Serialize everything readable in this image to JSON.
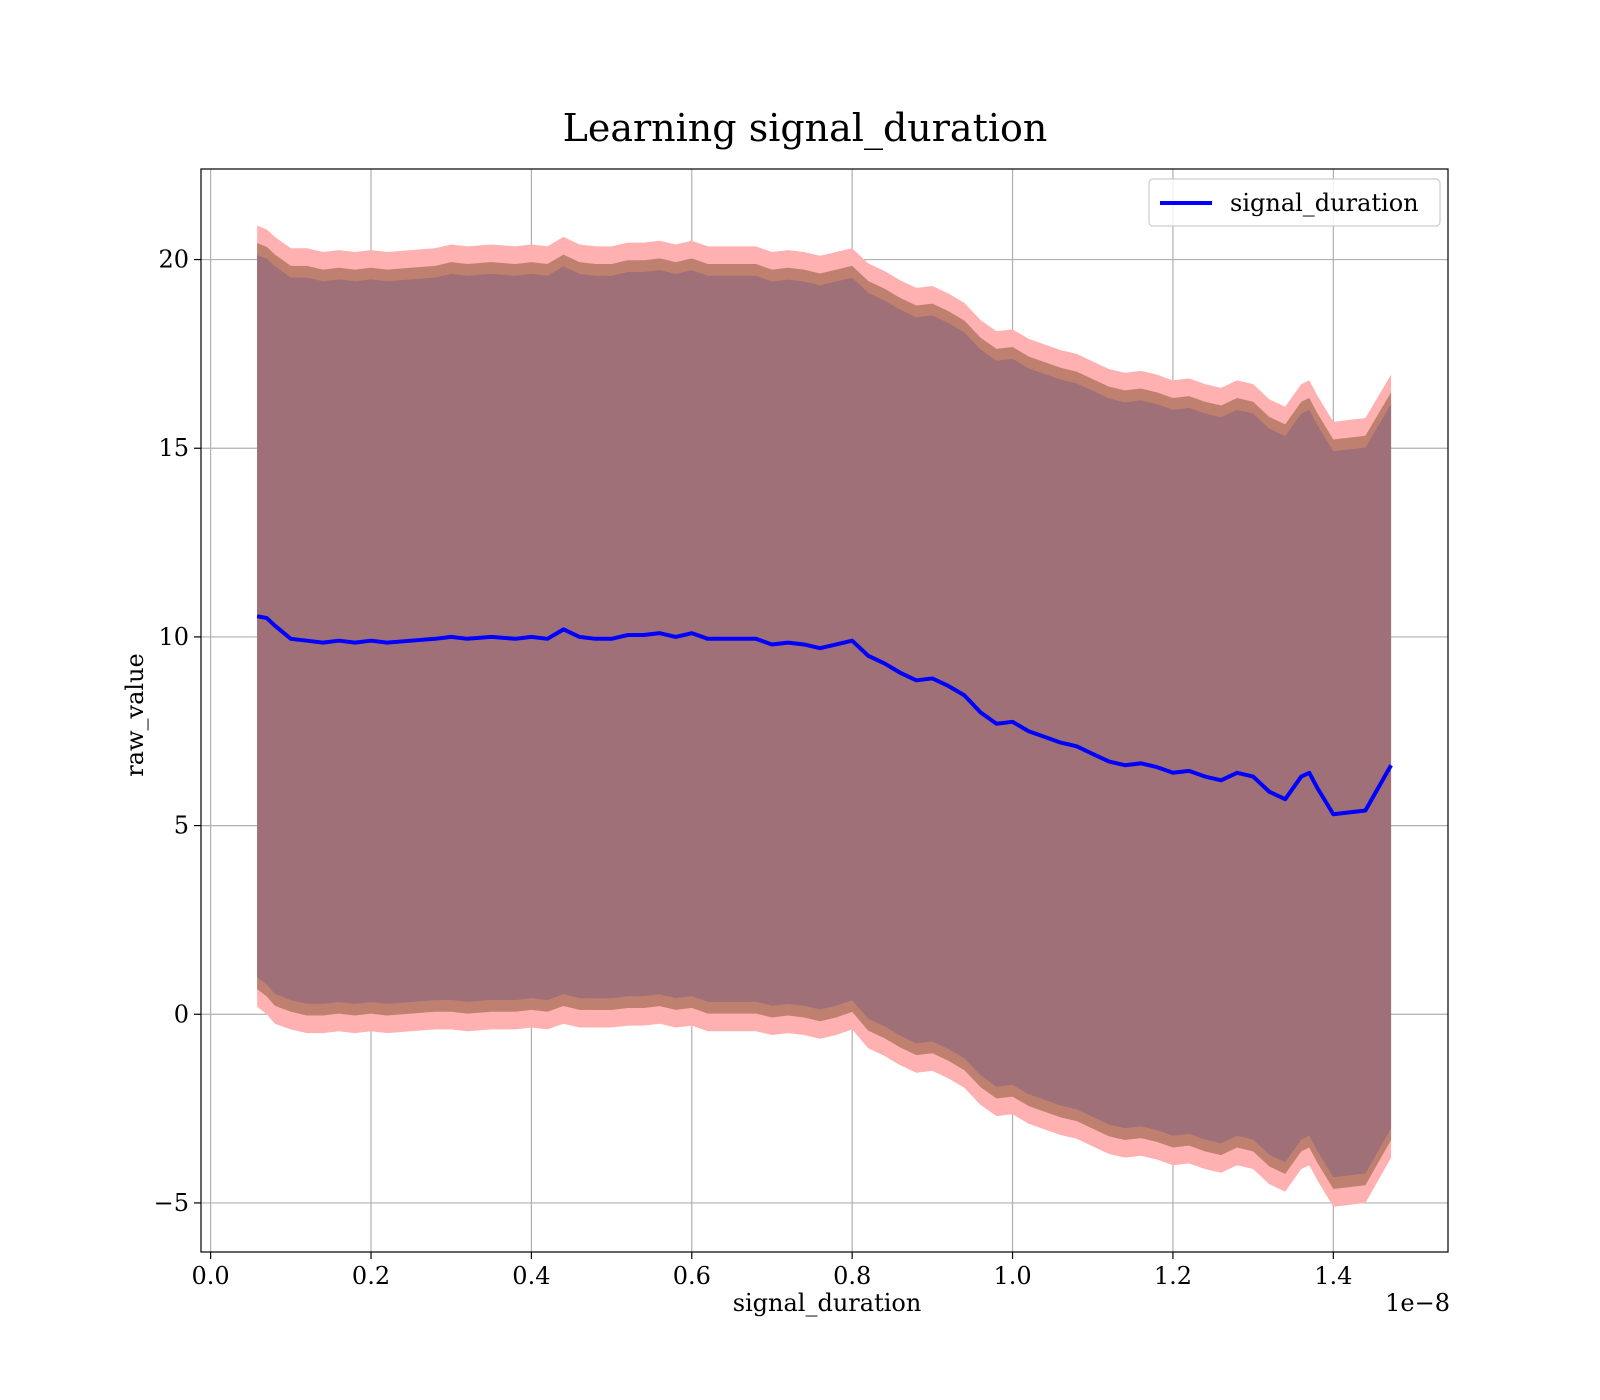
{
  "chart_data": {
    "type": "line",
    "title": "Learning signal_duration",
    "xlabel": "signal_duration",
    "ylabel": "raw_value",
    "x_offset_label": "1e−8",
    "xlim": [
      -0.012,
      1.543
    ],
    "ylim": [
      -6.3,
      22.4
    ],
    "x_ticks": [
      0.0,
      0.2,
      0.4,
      0.6,
      0.8,
      1.0,
      1.2,
      1.4
    ],
    "x_tick_labels": [
      "0.0",
      "0.2",
      "0.4",
      "0.6",
      "0.8",
      "1.0",
      "1.2",
      "1.4"
    ],
    "y_ticks": [
      -5,
      0,
      5,
      10,
      15,
      20
    ],
    "y_tick_labels": [
      "−5",
      "0",
      "5",
      "10",
      "15",
      "20"
    ],
    "grid": true,
    "legend": {
      "placement": "top-right",
      "entries": [
        "signal_duration"
      ]
    },
    "colors": {
      "line": "#0000ff",
      "band_outer": "#ffb0b0",
      "band_middle": "#c08070",
      "band_inner": "#a07078",
      "grid": "#b0b0b0"
    },
    "series": [
      {
        "name": "signal_duration",
        "x": [
          0.058,
          0.07,
          0.08,
          0.1,
          0.12,
          0.14,
          0.16,
          0.18,
          0.2,
          0.22,
          0.25,
          0.28,
          0.3,
          0.32,
          0.35,
          0.38,
          0.4,
          0.42,
          0.44,
          0.46,
          0.48,
          0.5,
          0.52,
          0.54,
          0.56,
          0.58,
          0.6,
          0.62,
          0.64,
          0.66,
          0.68,
          0.7,
          0.72,
          0.74,
          0.76,
          0.78,
          0.8,
          0.82,
          0.84,
          0.86,
          0.88,
          0.9,
          0.92,
          0.94,
          0.96,
          0.98,
          1.0,
          1.02,
          1.04,
          1.06,
          1.08,
          1.1,
          1.12,
          1.14,
          1.16,
          1.18,
          1.2,
          1.22,
          1.24,
          1.26,
          1.28,
          1.3,
          1.32,
          1.34,
          1.36,
          1.37,
          1.38,
          1.4,
          1.44,
          1.472
        ],
        "values": [
          10.55,
          10.5,
          10.3,
          9.95,
          9.9,
          9.85,
          9.9,
          9.85,
          9.9,
          9.85,
          9.9,
          9.95,
          10.0,
          9.95,
          10.0,
          9.95,
          10.0,
          9.95,
          10.2,
          10.0,
          9.95,
          9.95,
          10.05,
          10.05,
          10.1,
          10.0,
          10.1,
          9.95,
          9.95,
          9.95,
          9.95,
          9.8,
          9.85,
          9.8,
          9.7,
          9.8,
          9.9,
          9.5,
          9.3,
          9.05,
          8.85,
          8.9,
          8.7,
          8.45,
          8.0,
          7.7,
          7.75,
          7.5,
          7.35,
          7.2,
          7.1,
          6.9,
          6.7,
          6.6,
          6.65,
          6.55,
          6.4,
          6.45,
          6.3,
          6.2,
          6.4,
          6.3,
          5.9,
          5.7,
          6.3,
          6.4,
          6.0,
          5.3,
          5.4,
          6.6
        ],
        "lower_band": [
          0.2,
          0.0,
          -0.25,
          -0.4,
          -0.5,
          -0.5,
          -0.45,
          -0.5,
          -0.45,
          -0.5,
          -0.45,
          -0.4,
          -0.4,
          -0.45,
          -0.4,
          -0.4,
          -0.35,
          -0.4,
          -0.25,
          -0.35,
          -0.35,
          -0.35,
          -0.3,
          -0.3,
          -0.25,
          -0.35,
          -0.3,
          -0.45,
          -0.45,
          -0.45,
          -0.45,
          -0.55,
          -0.5,
          -0.55,
          -0.65,
          -0.55,
          -0.4,
          -0.9,
          -1.1,
          -1.35,
          -1.55,
          -1.5,
          -1.7,
          -1.95,
          -2.4,
          -2.7,
          -2.65,
          -2.9,
          -3.05,
          -3.2,
          -3.3,
          -3.5,
          -3.7,
          -3.8,
          -3.75,
          -3.85,
          -4.0,
          -3.95,
          -4.1,
          -4.2,
          -4.0,
          -4.1,
          -4.5,
          -4.7,
          -4.1,
          -4.0,
          -4.4,
          -5.1,
          -5.0,
          -3.8
        ],
        "upper_band": [
          20.9,
          20.8,
          20.6,
          20.3,
          20.3,
          20.2,
          20.25,
          20.2,
          20.25,
          20.2,
          20.25,
          20.3,
          20.4,
          20.35,
          20.4,
          20.35,
          20.4,
          20.35,
          20.6,
          20.4,
          20.35,
          20.35,
          20.45,
          20.45,
          20.5,
          20.4,
          20.5,
          20.35,
          20.35,
          20.35,
          20.35,
          20.2,
          20.25,
          20.2,
          20.1,
          20.2,
          20.3,
          19.9,
          19.7,
          19.45,
          19.25,
          19.3,
          19.1,
          18.85,
          18.4,
          18.1,
          18.15,
          17.9,
          17.75,
          17.6,
          17.5,
          17.3,
          17.1,
          17.0,
          17.05,
          16.95,
          16.8,
          16.85,
          16.7,
          16.6,
          16.8,
          16.7,
          16.3,
          16.1,
          16.7,
          16.8,
          16.4,
          15.7,
          15.8,
          16.95
        ]
      }
    ]
  }
}
